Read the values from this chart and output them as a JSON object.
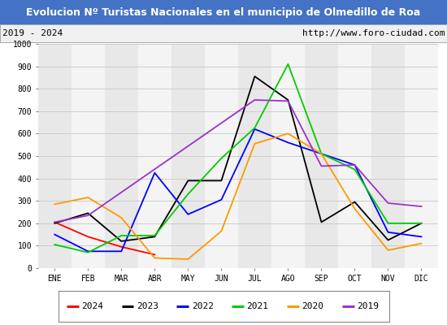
{
  "title": "Evolucion Nº Turistas Nacionales en el municipio de Olmedillo de Roa",
  "subtitle_left": "2019 - 2024",
  "subtitle_right": "http://www.foro-ciudad.com",
  "title_bg_color": "#4472c4",
  "title_text_color": "#ffffff",
  "subtitle_bg_color": "#f0f0f0",
  "subtitle_text_color": "#000000",
  "plot_bg_color": "#ffffff",
  "grid_color": "#cccccc",
  "months": [
    "ENE",
    "FEB",
    "MAR",
    "ABR",
    "MAY",
    "JUN",
    "JUL",
    "AGO",
    "SEP",
    "OCT",
    "NOV",
    "DIC"
  ],
  "ylim": [
    0,
    1000
  ],
  "yticks": [
    0,
    100,
    200,
    300,
    400,
    500,
    600,
    700,
    800,
    900,
    1000
  ],
  "series": {
    "2024": {
      "color": "#ff0000",
      "values": [
        205,
        140,
        95,
        60,
        null,
        null,
        null,
        null,
        null,
        null,
        null,
        null
      ]
    },
    "2023": {
      "color": "#000000",
      "values": [
        200,
        245,
        120,
        140,
        390,
        390,
        855,
        750,
        205,
        295,
        125,
        200
      ]
    },
    "2022": {
      "color": "#0000ff",
      "values": [
        150,
        75,
        75,
        425,
        240,
        305,
        620,
        560,
        510,
        460,
        160,
        140
      ]
    },
    "2021": {
      "color": "#00cc00",
      "values": [
        105,
        70,
        145,
        145,
        330,
        490,
        625,
        910,
        510,
        440,
        200,
        200
      ]
    },
    "2020": {
      "color": "#ff9900",
      "values": [
        285,
        315,
        225,
        45,
        40,
        165,
        555,
        600,
        510,
        265,
        80,
        110
      ]
    },
    "2019": {
      "color": "#9933cc",
      "values": [
        205,
        235,
        null,
        null,
        null,
        null,
        750,
        745,
        455,
        460,
        290,
        275
      ]
    }
  },
  "legend_order": [
    "2024",
    "2023",
    "2022",
    "2021",
    "2020",
    "2019"
  ]
}
